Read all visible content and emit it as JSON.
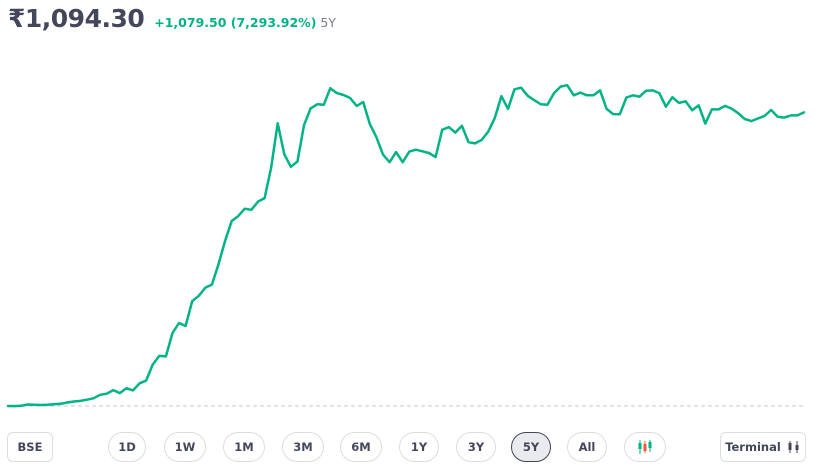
{
  "header": {
    "price": "₹1,094.30",
    "change": "+1,079.50 (7,293.92%)",
    "period": "5Y"
  },
  "controls": {
    "exchange": "BSE",
    "ranges": [
      "1D",
      "1W",
      "1M",
      "3M",
      "6M",
      "1Y",
      "3Y",
      "5Y",
      "All"
    ],
    "active_range": "5Y",
    "chart_type_icon": "candlestick-icon",
    "terminal_label": "Terminal",
    "terminal_icon": "candlestick-icon"
  },
  "colors": {
    "line": "#00b386",
    "baseline": "#c7c9d0",
    "text": "#44475b",
    "candle_up": "#00b386",
    "candle_down": "#eb5b3c"
  },
  "chart_data": {
    "type": "line",
    "title": "",
    "xlabel": "",
    "ylabel": "",
    "grid": false,
    "legend": "none",
    "reference_value": 14.8,
    "ylim": [
      0,
      1250
    ],
    "series": [
      {
        "values": [
          14.8,
          14.5,
          15.6,
          20.2,
          19.5,
          18.2,
          19.3,
          21.3,
          22.8,
          27.5,
          31.3,
          33.5,
          38,
          43,
          56,
          60,
          73,
          62,
          80,
          72,
          98,
          108,
          167,
          199,
          197,
          283,
          320,
          309,
          400,
          420,
          450,
          461,
          536,
          622,
          695,
          713,
          740,
          736,
          766,
          779,
          890,
          1054,
          940,
          894,
          914,
          1047,
          1109,
          1124,
          1122,
          1183,
          1165,
          1158,
          1147,
          1118,
          1132,
          1052,
          1003,
          939,
          911,
          948,
          911,
          950,
          957,
          951,
          945,
          930,
          1030,
          1040,
          1020,
          1045,
          985,
          980,
          993,
          1023,
          1074,
          1154,
          1107,
          1179,
          1185,
          1155,
          1139,
          1124,
          1122,
          1165,
          1189,
          1194,
          1157,
          1167,
          1157,
          1157,
          1175,
          1107,
          1088,
          1087,
          1149,
          1157,
          1152,
          1174,
          1175,
          1165,
          1115,
          1150,
          1129,
          1135,
          1102,
          1120,
          1053,
          1105,
          1105,
          1118,
          1108,
          1091,
          1070,
          1062,
          1072,
          1081,
          1103,
          1078,
          1075,
          1083,
          1083,
          1094.3
        ],
        "color": "#00b386"
      }
    ]
  }
}
